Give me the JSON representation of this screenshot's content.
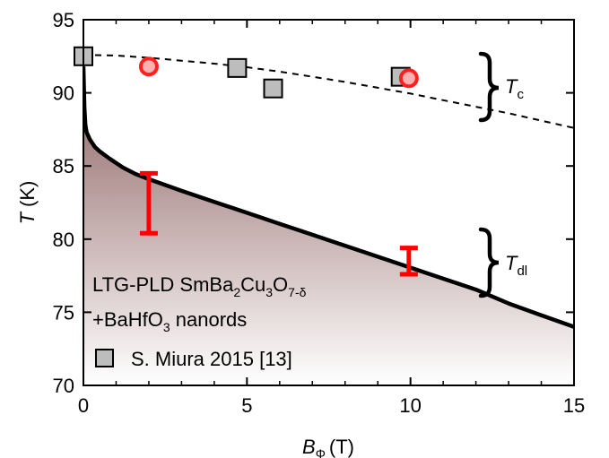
{
  "chart_data": {
    "type": "scatter",
    "xlim": [
      0,
      15
    ],
    "ylim": [
      70,
      95
    ],
    "xticks": [
      0,
      5,
      10,
      15
    ],
    "yticks": [
      70,
      75,
      80,
      85,
      90,
      95
    ],
    "xtick_labels": [
      "0",
      "5",
      "10",
      "15"
    ],
    "ytick_labels": [
      "70",
      "75",
      "80",
      "85",
      "90",
      "95"
    ],
    "xlabel": {
      "var": "B",
      "sub": "Φ",
      "unit": "(T)"
    },
    "ylabel": {
      "var": "T",
      "unit": "(K)"
    },
    "tc_curve": {
      "style": "dashed",
      "x": [
        0,
        1,
        2,
        3,
        4,
        5,
        6,
        7,
        8,
        9,
        10,
        11,
        12,
        13,
        14,
        15
      ],
      "y": [
        92.6,
        92.55,
        92.4,
        92.2,
        92.0,
        91.75,
        91.45,
        91.1,
        90.75,
        90.35,
        89.95,
        89.5,
        89.05,
        88.6,
        88.1,
        87.6
      ]
    },
    "tdl_curve": {
      "style": "solid",
      "fill": "shaded region below curve",
      "x": [
        0.0,
        0.03,
        0.06,
        0.1,
        0.2,
        0.35,
        0.5,
        0.8,
        1.2,
        1.6,
        2.0,
        3.0,
        4.0,
        5.0,
        6.0,
        7.0,
        8.0,
        9.0,
        10.0,
        11.0,
        12.0,
        13.0,
        14.0,
        15.0
      ],
      "y": [
        91.8,
        89.0,
        87.8,
        87.3,
        86.8,
        86.3,
        86.0,
        85.5,
        84.9,
        84.45,
        84.1,
        83.3,
        82.55,
        81.8,
        81.05,
        80.3,
        79.55,
        78.8,
        78.05,
        77.3,
        76.55,
        75.6,
        74.8,
        74.0
      ]
    },
    "series": [
      {
        "name": "S. Miura 2015 [13]",
        "marker": "square",
        "color": "#bdbdbd",
        "x": [
          0.0,
          4.7,
          5.8,
          9.7
        ],
        "y": [
          92.5,
          91.7,
          90.3,
          91.1
        ]
      },
      {
        "marker": "circle",
        "color": "#ff2020",
        "fill": "#ffb0b0",
        "x": [
          2.0,
          9.95
        ],
        "y": [
          91.8,
          91.0
        ]
      },
      {
        "marker": "errorbar",
        "color": "#ff0000",
        "x": [
          2.0,
          9.95
        ],
        "y_low": [
          80.4,
          77.6
        ],
        "y_high": [
          84.5,
          79.4
        ]
      }
    ],
    "annotations": {
      "tc_label": {
        "var": "T",
        "sub": "c"
      },
      "tdl_label": {
        "var": "T",
        "sub": "dl"
      },
      "sample_line1_parts": [
        "LTG-PLD SmBa",
        "2",
        "Cu",
        "3",
        "O",
        "7-δ"
      ],
      "sample_line2_parts": [
        "+BaHfO",
        "3",
        " nanords"
      ]
    },
    "legend": {
      "placement": "lower-left"
    },
    "colors": {
      "tc_line": "#000000",
      "tdl_line": "#000000",
      "shade_top": "#8c5f5f",
      "shade_bottom": "#ffffff"
    }
  }
}
